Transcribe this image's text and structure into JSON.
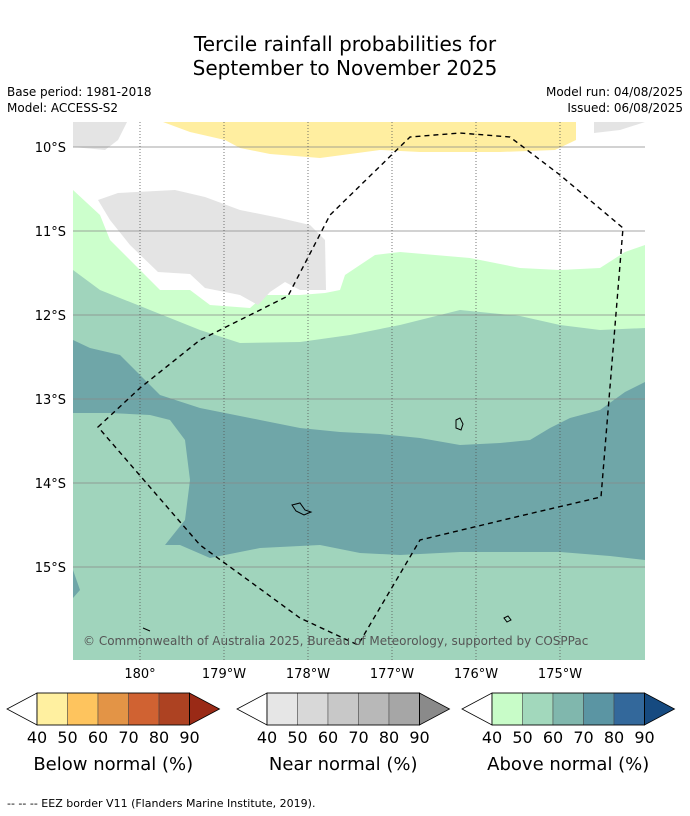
{
  "header": {
    "title_line1": "Tercile rainfall probabilities for",
    "title_line2": "September to November 2025",
    "base_period": "Base period: 1981-2018",
    "model": "Model: ACCESS-S2",
    "model_run": "Model run: 04/08/2025",
    "issued": "Issued: 06/08/2025"
  },
  "map": {
    "lat_labels": [
      "10°S",
      "11°S",
      "12°S",
      "13°S",
      "14°S",
      "15°S"
    ],
    "lon_labels": [
      "180°",
      "179°W",
      "178°W",
      "177°W",
      "176°W",
      "175°W"
    ],
    "copyright": "© Commonwealth of Australia 2025, Bureau of Meteorology, supported by COSPPac",
    "colors": {
      "near_normal_40": "#e4e4e4",
      "below_normal_40": "#ffeea0",
      "above_normal_40": "#ccffcc",
      "above_normal_50": "#a0d4bc",
      "above_normal_60": "#6fa6a8",
      "ocean": "#ffffff",
      "eez_border": "#000000"
    }
  },
  "legend": {
    "ticks": [
      "40",
      "50",
      "60",
      "70",
      "80",
      "90"
    ],
    "below": {
      "label": "Below normal (%)",
      "colors": [
        "#fff0a0",
        "#fec45e",
        "#e39446",
        "#d06232",
        "#ad4222",
        "#9a2a16"
      ]
    },
    "near": {
      "label": "Near normal (%)",
      "colors": [
        "#e6e6e6",
        "#d8d8d8",
        "#c8c8c8",
        "#b8b8b8",
        "#a6a6a6",
        "#8a8a8a"
      ]
    },
    "above": {
      "label": "Above normal (%)",
      "colors": [
        "#c8fcc8",
        "#a2d8bc",
        "#80b7ad",
        "#5b95a3",
        "#33689b",
        "#164a80"
      ]
    }
  },
  "footnote": "--  --  -- EEZ border V11 (Flanders Marine Institute, 2019)."
}
